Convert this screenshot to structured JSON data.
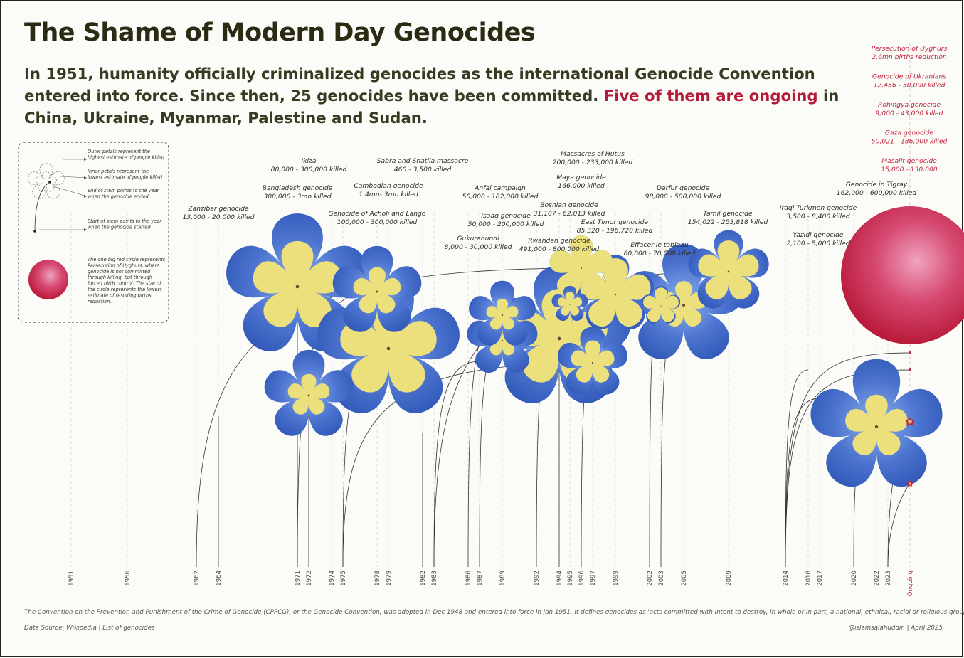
{
  "title": "The Shame of Modern Day Genocides",
  "subtitle": {
    "part1": "In 1951, humanity officially criminalized genocides as the international Genocide Convention entered into force. Since then, 25 genocides have been committed. ",
    "highlight": "Five of them are ongoing",
    "part2": " in China, Ukraine, Myanmar, Palestine and Sudan."
  },
  "colors": {
    "background": "#fbfbf7",
    "petal": "#3a63c2",
    "petal_inner": "#ebe07c",
    "ongoing_red": "#c0223e",
    "stem": "#333333"
  },
  "legend": {
    "outer_petals": [
      "Outer petals represent the",
      "highest estimate of people killed"
    ],
    "inner_petals": [
      "Inner petals represent the",
      "lowest estimate of people killed"
    ],
    "stem_end": [
      "End of stem points to the year",
      "when the genocide ended"
    ],
    "stem_start": [
      "Start of stem points to the year",
      "when the genocide started"
    ],
    "red_circle": [
      "The one big red circle represents",
      "Persecution of Uyghurs, where",
      "genocide is not committed",
      "through killing, but through",
      "forced birth control. The size of",
      "the circle represents the lowest",
      "estimate of resulting births",
      "reduction."
    ]
  },
  "footer": {
    "note": "The Convention on the Prevention and Punishment of the Crime of Genocide (CPPCG), or the Genocide Convention, was adopted in Dec 1948 and entered into force in Jan 1951. It defines genocides as 'acts committed with intent to destroy, in whole or in part, a national, ethnical, racial or religious group'.",
    "source": "Data Source: Wikipedia | List of genocides",
    "credit": "@islamsalahuddin | April 2025"
  },
  "chart_data": {
    "type": "scatter",
    "x_axis_ticks": [
      "1951",
      "1956",
      "1962",
      "1964",
      "1971",
      "1972",
      "1974",
      "1975",
      "1978",
      "1979",
      "1982",
      "1983",
      "1986",
      "1987",
      "1989",
      "1992",
      "1994",
      "1995",
      "1996",
      "1997",
      "1999",
      "2002",
      "2003",
      "2005",
      "2009",
      "2014",
      "2016",
      "2017",
      "2020",
      "2022",
      "2023",
      "Ongoing"
    ],
    "ongoing_label": "Ongoing",
    "genocides": [
      {
        "name": "Zanzibar genocide",
        "range": "13,000 - 20,000 killed",
        "start": 1964,
        "end": 1964,
        "low": 13000,
        "high": 20000
      },
      {
        "name": "Ikiza",
        "range": "80,000 - 300,000 killed",
        "start": 1972,
        "end": 1972,
        "low": 80000,
        "high": 300000
      },
      {
        "name": "Bangladesh genocide",
        "range": "300,000 - 3mn killed",
        "start": 1971,
        "end": 1971,
        "low": 300000,
        "high": 3000000
      },
      {
        "name": "Cambodian genocide",
        "range": "1.4mn- 3mn killed",
        "start": 1975,
        "end": 1979,
        "low": 1400000,
        "high": 3000000
      },
      {
        "name": "Sabra and Shatila massacre",
        "range": "460 - 3,500 killed",
        "start": 1982,
        "end": 1982,
        "low": 460,
        "high": 3500
      },
      {
        "name": "Genocide of Acholi and Lango",
        "range": "100,000 - 300,000 killed",
        "start": 1971,
        "end": 1979,
        "low": 100000,
        "high": 300000
      },
      {
        "name": "Anfal campaign",
        "range": "50,000 - 182,000 killed",
        "start": 1986,
        "end": 1989,
        "low": 50000,
        "high": 182000
      },
      {
        "name": "Isaaq genocide",
        "range": "50,000 - 200,000 killed",
        "start": 1987,
        "end": 1989,
        "low": 50000,
        "high": 200000
      },
      {
        "name": "Gukurahundi",
        "range": "8,000 - 30,000 killed",
        "start": 1983,
        "end": 1987,
        "low": 8000,
        "high": 30000
      },
      {
        "name": "Massacres of Hutus",
        "range": "200,000 - 233,000 killed",
        "start": 1996,
        "end": 1999,
        "low": 200000,
        "high": 233000
      },
      {
        "name": "Maya genocide",
        "range": "166,000 killed",
        "start": 1962,
        "end": 1996,
        "low": 166000,
        "high": 166000
      },
      {
        "name": "Bosnian genocide",
        "range": "31,107 - 62,013 killed",
        "start": 1992,
        "end": 1995,
        "low": 31107,
        "high": 62013
      },
      {
        "name": "Rwandan genocide",
        "range": "491,000 - 800,000 killed",
        "start": 1994,
        "end": 1994,
        "low": 491000,
        "high": 800000
      },
      {
        "name": "East Timor genocide",
        "range": "85,320 - 196,720 killed",
        "start": 1975,
        "end": 1999,
        "low": 85320,
        "high": 196720
      },
      {
        "name": "Darfur genocide",
        "range": "98,000 - 500,000 killed",
        "start": 2003,
        "end": 2005,
        "low": 98000,
        "high": 500000
      },
      {
        "name": "Effacer le tableau",
        "range": "60,000 - 70,000 killed",
        "start": 2002,
        "end": 2003,
        "low": 60000,
        "high": 70000
      },
      {
        "name": "Tamil genocide",
        "range": "154,022 - 253,818 killed",
        "start": 1983,
        "end": 2009,
        "low": 154022,
        "high": 253818
      },
      {
        "name": "Iraqi Turkmen genocide",
        "range": "3,500 - 8,400 killed",
        "start": 2014,
        "end": 2017,
        "low": 3500,
        "high": 8400
      },
      {
        "name": "Yazidi genocide",
        "range": "2,100 - 5,000 killed",
        "start": 2014,
        "end": 2017,
        "low": 2100,
        "high": 5000
      },
      {
        "name": "Genocide in Tigray",
        "range": "162,000 - 600,000 killed",
        "start": 2020,
        "end": 2022,
        "low": 162000,
        "high": 600000
      }
    ],
    "ongoing": [
      {
        "name": "Persecution of Uyghurs",
        "range": "2.6mn births reduction"
      },
      {
        "name": "Genocide of Ukranians",
        "range": "12,456 - 50,000 killed"
      },
      {
        "name": "Rohingya genocide",
        "range": "9,000 - 43,000 killed"
      },
      {
        "name": "Gaza genocide",
        "range": "50,021 - 186,000 killed"
      },
      {
        "name": "Masalit genocide",
        "range": "15,000 - 130,000"
      }
    ]
  }
}
